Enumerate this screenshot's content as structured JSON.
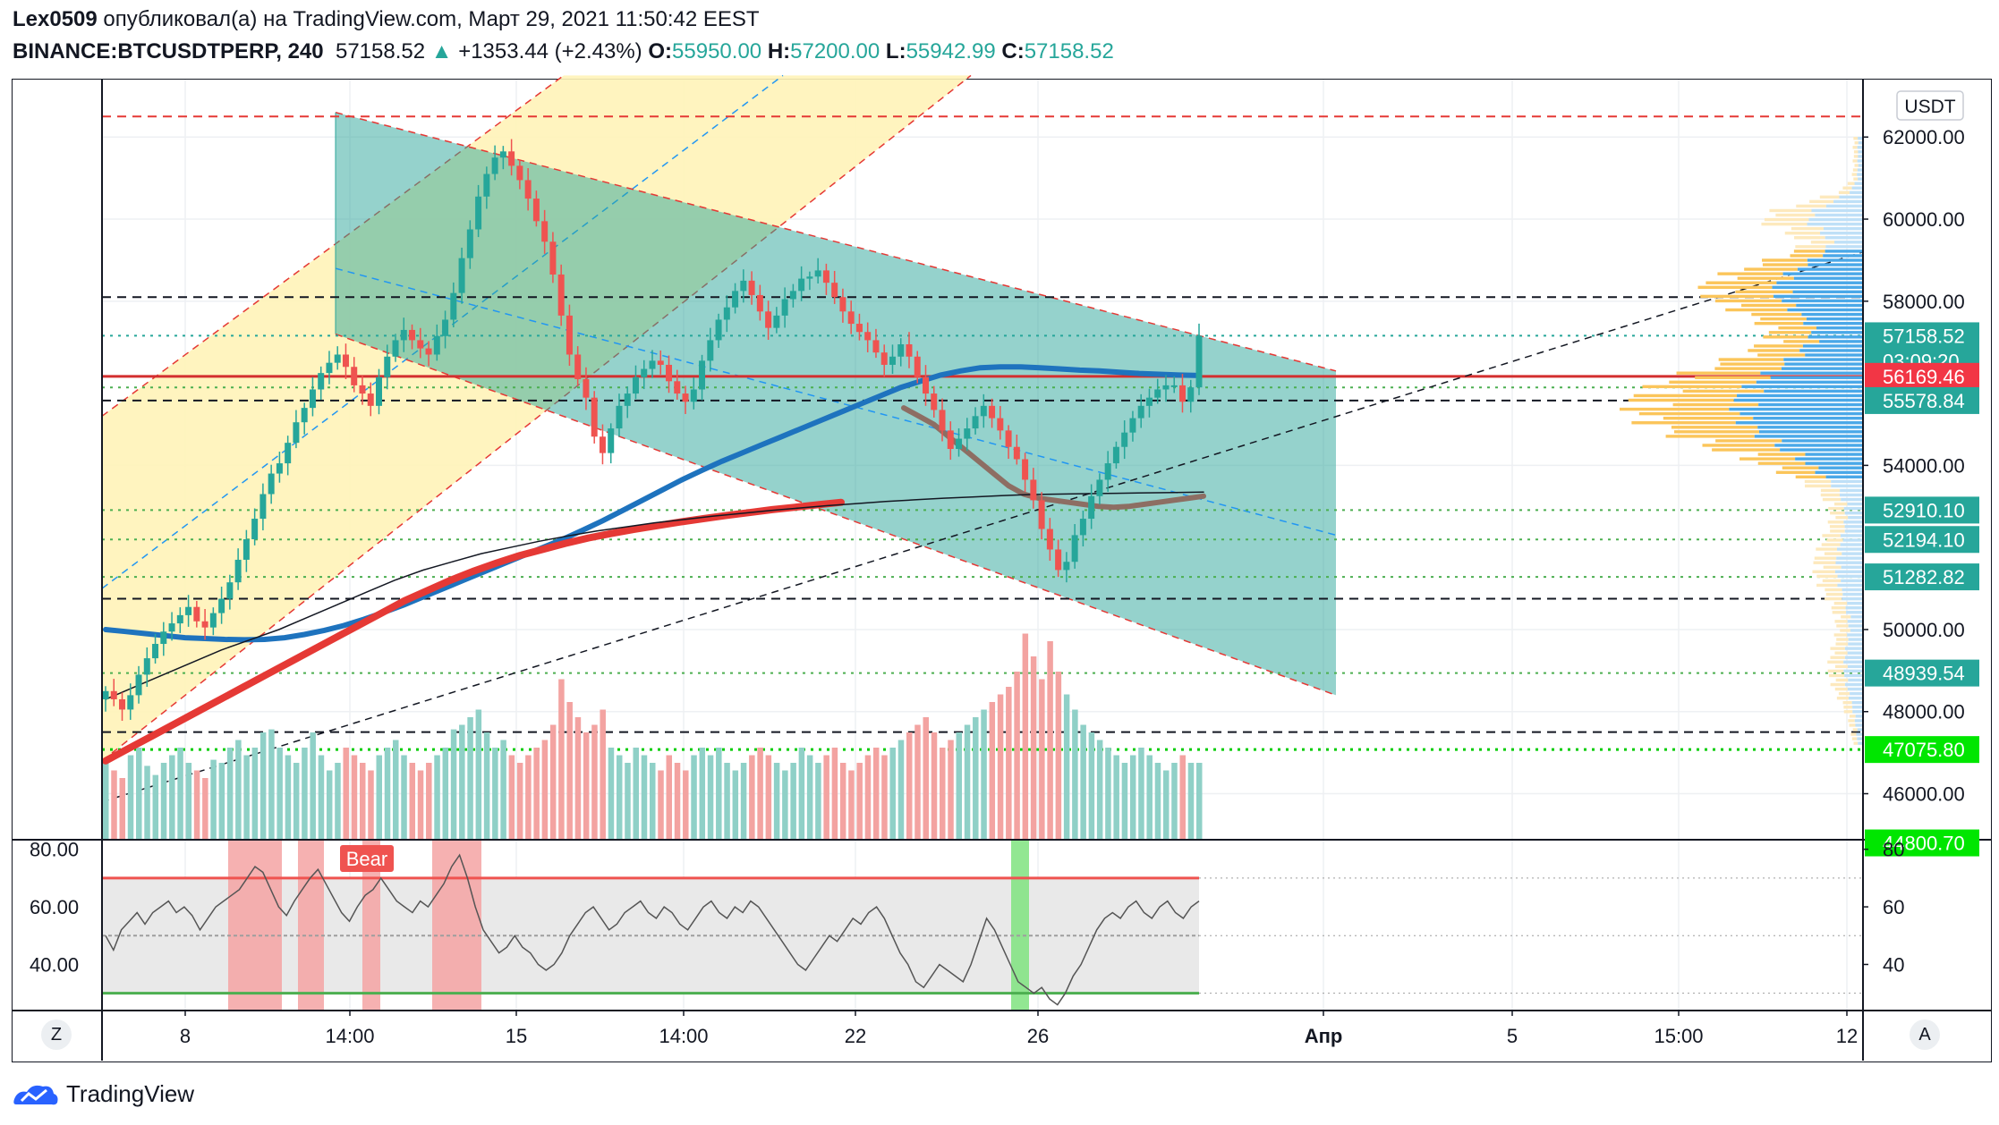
{
  "header": {
    "author": "Lex0509",
    "published_text": "опубликовал(а) на TradingView.com, Март 29, 2021 11:50:42 EEST",
    "symbol": "BINANCE:BTCUSDTPERP, 240",
    "last": "57158.52",
    "change_arrow": "▲",
    "change": "+1353.44 (+2.43%)",
    "o_label": "O:",
    "o": "55950.00",
    "h_label": "H:",
    "h": "57200.00",
    "l_label": "L:",
    "l": "55942.99",
    "c_label": "C:",
    "c": "57158.52"
  },
  "currency_button": "USDT",
  "scale_buttons": {
    "left": "Z",
    "right": "A"
  },
  "footer_brand": "TradingView",
  "colors": {
    "up": "#26a69a",
    "down": "#ef5350",
    "channel": "#2ca59a",
    "band": "#fff3b8",
    "ma_blue": "#1e73be",
    "ma_red": "#e53935",
    "ma_brown": "#8d6e63"
  },
  "chart_data": [
    {
      "type": "candlestick",
      "y_axis_labels": [
        "62000.00",
        "60000.00",
        "58000.00",
        "54000.00",
        "50000.00",
        "48000.00",
        "46000.00"
      ],
      "y_ticks": [
        62000,
        60000,
        58000,
        54000,
        50000,
        48000,
        46000
      ],
      "ylim": [
        44900,
        63400
      ],
      "x_tick_labels": [
        "8",
        "14:00",
        "15",
        "14:00",
        "22",
        "26",
        "Апр",
        "5",
        "15:00",
        "12"
      ],
      "price_labels": [
        {
          "value": 57158.52,
          "text": "57158.52",
          "color": "#26a69a"
        },
        {
          "value": 57158.52,
          "text": "03:09:20",
          "color": "#26a69a",
          "sub": true
        },
        {
          "value": 56169.46,
          "text": "56169.46",
          "color": "#f23645"
        },
        {
          "value": 55578.84,
          "text": "55578.84",
          "color": "#26a69a"
        },
        {
          "value": 52910.1,
          "text": "52910.10",
          "color": "#26a69a"
        },
        {
          "value": 52194.1,
          "text": "52194.10",
          "color": "#26a69a"
        },
        {
          "value": 51282.82,
          "text": "51282.82",
          "color": "#26a69a"
        },
        {
          "value": 48939.54,
          "text": "48939.54",
          "color": "#26a69a"
        },
        {
          "value": 47075.8,
          "text": "47075.80",
          "color": "#00e600"
        },
        {
          "value": 44800.7,
          "text": "44800.70",
          "color": "#00e600"
        }
      ],
      "horizontal_lines": [
        {
          "value": 62500,
          "style": "dashed",
          "color": "#e53935"
        },
        {
          "value": 58100,
          "style": "dashed",
          "color": "#131722"
        },
        {
          "value": 57158.52,
          "style": "dotted",
          "color": "#26a69a"
        },
        {
          "value": 56169.46,
          "style": "solid",
          "color": "#d32f2f"
        },
        {
          "value": 55578.84,
          "style": "dashed",
          "color": "#131722"
        },
        {
          "value": 55900,
          "style": "dotted",
          "color": "#4caf50"
        },
        {
          "value": 52910.1,
          "style": "dotted",
          "color": "#4caf50"
        },
        {
          "value": 52194.1,
          "style": "dotted",
          "color": "#4caf50"
        },
        {
          "value": 51282.82,
          "style": "dotted",
          "color": "#4caf50"
        },
        {
          "value": 50750,
          "style": "dashed",
          "color": "#131722"
        },
        {
          "value": 48939.54,
          "style": "dotted",
          "color": "#4caf50"
        },
        {
          "value": 47500,
          "style": "dashed",
          "color": "#131722"
        },
        {
          "value": 47075.8,
          "style": "dotted",
          "color": "#00cc00"
        }
      ],
      "close_prices": [
        48500,
        48300,
        48050,
        48400,
        48900,
        49300,
        49650,
        49950,
        50150,
        50350,
        50550,
        50200,
        50050,
        50400,
        50750,
        51150,
        51700,
        52200,
        52700,
        53300,
        53800,
        54050,
        54550,
        55050,
        55400,
        55850,
        56250,
        56500,
        56700,
        56400,
        55950,
        55750,
        55450,
        56150,
        56650,
        57050,
        57300,
        57050,
        56850,
        56700,
        57150,
        57550,
        58200,
        59050,
        59750,
        60550,
        61100,
        61500,
        61650,
        61300,
        60950,
        60500,
        59950,
        59450,
        58650,
        57650,
        56700,
        56100,
        55650,
        54700,
        54300,
        54900,
        55450,
        55750,
        56150,
        56350,
        56550,
        56450,
        56050,
        55750,
        55550,
        55850,
        56550,
        57050,
        57550,
        57850,
        58250,
        58500,
        58150,
        57750,
        57350,
        57650,
        58050,
        58250,
        58550,
        58600,
        58750,
        58450,
        58100,
        57750,
        57450,
        57250,
        57050,
        56750,
        56450,
        56650,
        56950,
        56650,
        56150,
        55750,
        55350,
        54850,
        54400,
        54650,
        54900,
        55200,
        55450,
        55150,
        54850,
        54450,
        54150,
        53650,
        53150,
        52450,
        51950,
        51450,
        51650,
        52300,
        52700,
        53250,
        53650,
        54050,
        54450,
        54800,
        55150,
        55450,
        55650,
        55850,
        55950,
        55950,
        55550,
        55900,
        57158
      ],
      "volume_relative": [
        0.5,
        0.45,
        0.4,
        0.55,
        0.6,
        0.48,
        0.42,
        0.5,
        0.55,
        0.6,
        0.5,
        0.45,
        0.4,
        0.52,
        0.5,
        0.6,
        0.65,
        0.55,
        0.6,
        0.7,
        0.72,
        0.6,
        0.55,
        0.5,
        0.6,
        0.7,
        0.55,
        0.45,
        0.5,
        0.6,
        0.55,
        0.5,
        0.45,
        0.55,
        0.6,
        0.65,
        0.55,
        0.5,
        0.45,
        0.5,
        0.55,
        0.6,
        0.72,
        0.75,
        0.8,
        0.85,
        0.7,
        0.6,
        0.65,
        0.55,
        0.5,
        0.55,
        0.6,
        0.65,
        0.75,
        1.05,
        0.9,
        0.8,
        0.7,
        0.75,
        0.85,
        0.6,
        0.55,
        0.5,
        0.6,
        0.55,
        0.5,
        0.45,
        0.55,
        0.5,
        0.45,
        0.55,
        0.6,
        0.55,
        0.6,
        0.5,
        0.45,
        0.5,
        0.55,
        0.6,
        0.55,
        0.5,
        0.45,
        0.5,
        0.6,
        0.55,
        0.5,
        0.55,
        0.6,
        0.5,
        0.45,
        0.5,
        0.55,
        0.6,
        0.55,
        0.6,
        0.65,
        0.7,
        0.75,
        0.8,
        0.7,
        0.6,
        0.65,
        0.7,
        0.75,
        0.8,
        0.85,
        0.9,
        0.95,
        1.0,
        1.1,
        1.35,
        1.2,
        1.05,
        1.3,
        1.1,
        0.95,
        0.85,
        0.75,
        0.7,
        0.65,
        0.6,
        0.55,
        0.5,
        0.55,
        0.6,
        0.55,
        0.5,
        0.45,
        0.5,
        0.55,
        0.5,
        0.5
      ],
      "moving_averages": [
        {
          "color": "#1e73be",
          "width": 6,
          "values": [
            50000,
            49950,
            49900,
            49850,
            49800,
            49780,
            49760,
            49750,
            49760,
            49800,
            49880,
            49980,
            50100,
            50250,
            50420,
            50600,
            50800,
            51000,
            51200,
            51400,
            51600,
            51800,
            52000,
            52200,
            52420,
            52650,
            52900,
            53150,
            53400,
            53650,
            53880,
            54100,
            54300,
            54500,
            54700,
            54900,
            55100,
            55300,
            55500,
            55700,
            55900,
            56050,
            56200,
            56300,
            56380,
            56400,
            56400,
            56380,
            56350,
            56320,
            56300,
            56270,
            56240,
            56220,
            56200,
            56190
          ]
        },
        {
          "color": "#e53935",
          "width": 8,
          "values": [
            46800,
            47100,
            47400,
            47700,
            48000,
            48300,
            48600,
            48900,
            49200,
            49500,
            49800,
            50100,
            50400,
            50700,
            50950,
            51200,
            51420,
            51620,
            51800,
            51950,
            52100,
            52230,
            52340,
            52440,
            52530,
            52620,
            52700,
            52780,
            52850,
            52920,
            52980,
            53040,
            53100
          ]
        },
        {
          "color": "#8d6e63",
          "width": 6,
          "values": [
            55400,
            55200,
            55000,
            54700,
            54400,
            54100,
            53800,
            53500,
            53300,
            53200,
            53150,
            53100,
            53050,
            53000,
            52980,
            53000,
            53050,
            53100,
            53150,
            53200,
            53250
          ]
        },
        {
          "color": "#131722",
          "width": 1.5,
          "values": [
            48300,
            48600,
            48900,
            49200,
            49500,
            49750,
            50000,
            50300,
            50600,
            50900,
            51200,
            51450,
            51650,
            51850,
            52000,
            52150,
            52280,
            52400,
            52500,
            52600,
            52680,
            52760,
            52830,
            52900,
            52960,
            53020,
            53070,
            53120,
            53160,
            53200,
            53230,
            53260,
            53290,
            53300,
            53310,
            53320,
            53330,
            53340,
            53350
          ]
        }
      ],
      "volume_profile_note": ""
    },
    {
      "type": "line",
      "y_axis_labels": [
        "80.00",
        "60.00",
        "40.00"
      ],
      "y_axis_labels_right": [
        "80",
        "60",
        "40"
      ],
      "ylim": [
        24,
        83
      ],
      "upper_band": 70,
      "mid_band": 50,
      "lower_band": 30,
      "annotation": "Bear",
      "values": [
        50,
        45,
        52,
        55,
        58,
        54,
        58,
        60,
        62,
        58,
        60,
        57,
        52,
        56,
        60,
        62,
        64,
        66,
        70,
        74,
        72,
        66,
        60,
        57,
        62,
        66,
        70,
        73,
        68,
        63,
        58,
        55,
        60,
        64,
        66,
        70,
        66,
        62,
        60,
        58,
        62,
        60,
        64,
        68,
        74,
        78,
        70,
        60,
        52,
        48,
        44,
        46,
        50,
        46,
        44,
        40,
        38,
        40,
        44,
        50,
        54,
        58,
        60,
        56,
        52,
        54,
        58,
        60,
        62,
        58,
        56,
        60,
        58,
        54,
        52,
        56,
        60,
        62,
        58,
        56,
        60,
        58,
        62,
        60,
        56,
        52,
        48,
        44,
        40,
        38,
        42,
        46,
        50,
        48,
        52,
        56,
        54,
        58,
        60,
        56,
        50,
        44,
        40,
        34,
        32,
        36,
        40,
        38,
        36,
        34,
        40,
        48,
        56,
        52,
        46,
        40,
        34,
        32,
        30,
        32,
        28,
        26,
        30,
        36,
        40,
        46,
        52,
        56,
        58,
        56,
        60,
        62,
        58,
        56,
        60,
        62,
        58,
        56,
        60,
        62
      ]
    }
  ]
}
